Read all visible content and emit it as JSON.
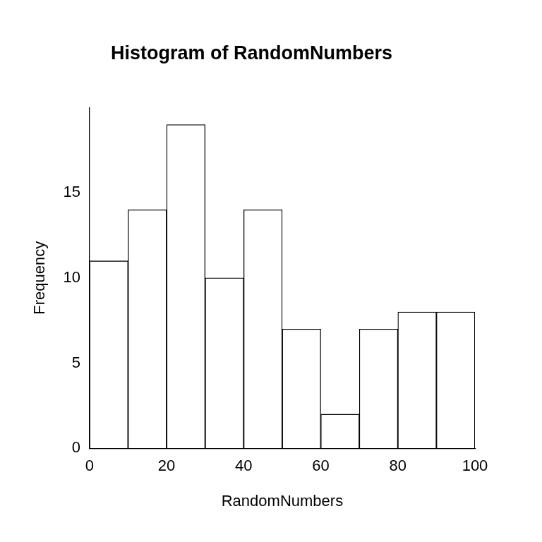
{
  "chart_data": {
    "type": "histogram",
    "title": "Histogram of RandomNumbers",
    "x_label": "RandomNumbers",
    "y_label": "Frequency",
    "bins": [
      0,
      10,
      20,
      30,
      40,
      50,
      60,
      70,
      80,
      90,
      100
    ],
    "values": [
      11,
      14,
      19,
      10,
      14,
      7,
      2,
      7,
      8,
      8
    ],
    "color": "#ffffff",
    "xlim": [
      0,
      100
    ],
    "xticks": [
      0,
      20,
      40,
      60,
      80,
      100
    ],
    "ylim": [
      0,
      20
    ],
    "yticks": [
      0,
      5,
      10,
      15
    ],
    "grid": false
  }
}
